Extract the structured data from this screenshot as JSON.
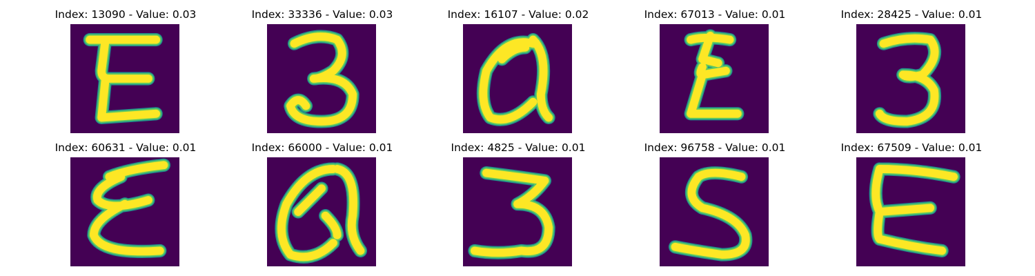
{
  "figure": {
    "panels": [
      {
        "index_label": "Index: 13090 - Value: 0.03",
        "glyph": "E",
        "glyph_shape": "E-open-upright"
      },
      {
        "index_label": "Index: 33336 - Value: 0.03",
        "glyph": "3",
        "glyph_shape": "three-round"
      },
      {
        "index_label": "Index: 16107 - Value: 0.02",
        "glyph": "Q",
        "glyph_shape": "a-script"
      },
      {
        "index_label": "Index: 67013 - Value: 0.01",
        "glyph": "E",
        "glyph_shape": "epsilon-narrow"
      },
      {
        "index_label": "Index: 28425 - Value: 0.01",
        "glyph": "3",
        "glyph_shape": "three-bold"
      },
      {
        "index_label": "Index: 60631 - Value: 0.01",
        "glyph": "E",
        "glyph_shape": "epsilon-slanted"
      },
      {
        "index_label": "Index: 66000 - Value: 0.01",
        "glyph": "Q",
        "glyph_shape": "a-script-wide"
      },
      {
        "index_label": "Index: 4825 - Value: 0.01",
        "glyph": "3",
        "glyph_shape": "three-thick"
      },
      {
        "index_label": "Index: 96758 - Value: 0.01",
        "glyph": "S",
        "glyph_shape": "s-shape"
      },
      {
        "index_label": "Index: 67509 - Value: 0.01",
        "glyph": "E",
        "glyph_shape": "E-block"
      }
    ],
    "colormap": {
      "background": "#440154",
      "edge": "#21918c",
      "mid": "#5ec962",
      "peak": "#fde725"
    }
  }
}
